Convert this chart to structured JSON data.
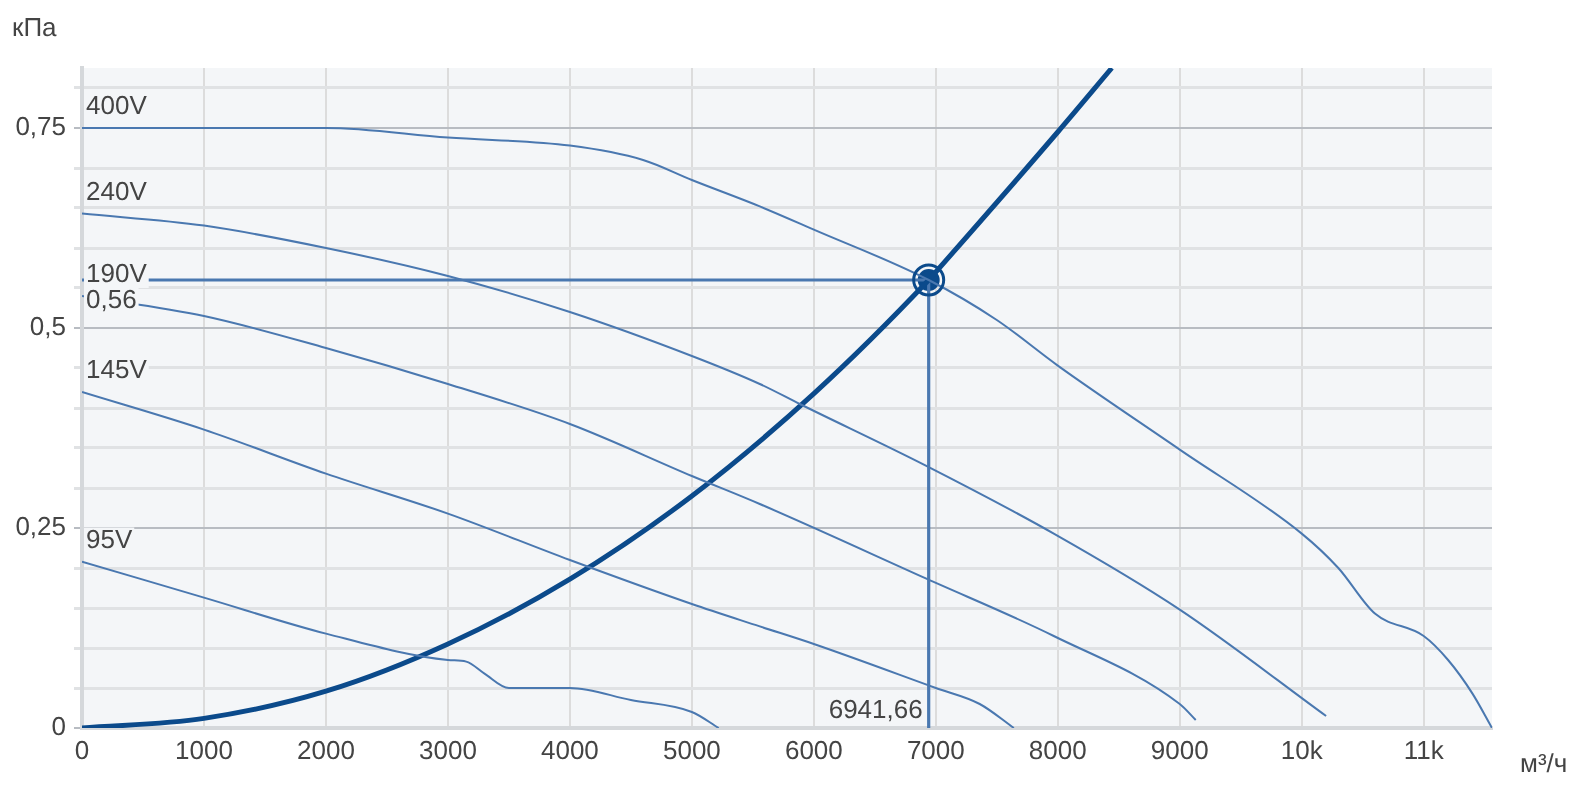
{
  "chart_data": {
    "type": "line",
    "xlabel": "м³/ч",
    "ylabel": "кПа",
    "xlim": [
      0,
      11560
    ],
    "ylim": [
      0,
      0.825
    ],
    "xticks": [
      0,
      1000,
      2000,
      3000,
      4000,
      5000,
      6000,
      7000,
      8000,
      9000,
      {
        "value": 10000,
        "label": "10k"
      },
      {
        "value": 11000,
        "label": "11k"
      }
    ],
    "yticks": [
      {
        "value": 0,
        "label": "0"
      },
      {
        "value": 0.05,
        "label": null
      },
      {
        "value": 0.1,
        "label": null
      },
      {
        "value": 0.15,
        "label": null
      },
      {
        "value": 0.2,
        "label": null
      },
      {
        "value": 0.25,
        "label": "0,25"
      },
      {
        "value": 0.3,
        "label": null
      },
      {
        "value": 0.35,
        "label": null
      },
      {
        "value": 0.4,
        "label": null
      },
      {
        "value": 0.45,
        "label": null
      },
      {
        "value": 0.5,
        "label": "0,5"
      },
      {
        "value": 0.55,
        "label": null
      },
      {
        "value": 0.6,
        "label": null
      },
      {
        "value": 0.65,
        "label": null
      },
      {
        "value": 0.7,
        "label": null
      },
      {
        "value": 0.75,
        "label": "0,75"
      },
      {
        "value": 0.8,
        "label": null
      }
    ],
    "grid": true,
    "legend": false,
    "marker": "none",
    "line_style": "solid",
    "series": [
      {
        "name": "400V",
        "color": "#4a78b0",
        "x": [
          0,
          1000,
          2000,
          3000,
          4000,
          4600,
          5000,
          5557,
          6000,
          6941.66,
          7500,
          8000,
          9000,
          10000,
          10300,
          10600,
          11000,
          11200,
          11400,
          11560
        ],
        "values": [
          0.75,
          0.75,
          0.75,
          0.738,
          0.728,
          0.71,
          0.685,
          0.652,
          0.623,
          0.56,
          0.51,
          0.453,
          0.348,
          0.243,
          0.2,
          0.143,
          0.115,
          0.085,
          0.043,
          0
        ]
      },
      {
        "name": "240V",
        "color": "#4a78b0",
        "x": [
          0,
          1000,
          2000,
          3000,
          4000,
          5000,
          5557,
          5885,
          6918,
          7967,
          9000,
          10200
        ],
        "values": [
          0.643,
          0.628,
          0.6,
          0.565,
          0.52,
          0.465,
          0.43,
          0.405,
          0.328,
          0.243,
          0.148,
          0.015
        ]
      },
      {
        "name": "190V",
        "color": "#4a78b0",
        "x": [
          0,
          1000,
          2000,
          3000,
          4000,
          5000,
          5557,
          6918,
          7967,
          9000,
          9131
        ],
        "values": [
          0.54,
          0.515,
          0.475,
          0.43,
          0.38,
          0.315,
          0.28,
          0.187,
          0.115,
          0.03,
          0.01
        ]
      },
      {
        "name": "145V",
        "color": "#4a78b0",
        "x": [
          0,
          1000,
          2000,
          3000,
          4000,
          5000,
          5557,
          6000,
          7000,
          7360,
          7640
        ],
        "values": [
          0.42,
          0.373,
          0.318,
          0.268,
          0.21,
          0.155,
          0.127,
          0.105,
          0.05,
          0.03,
          0
        ]
      },
      {
        "name": "95V",
        "color": "#4a78b0",
        "x": [
          0,
          1000,
          2000,
          3000,
          3150,
          3300,
          3500,
          4000,
          4500,
          5000,
          5220
        ],
        "values": [
          0.208,
          0.163,
          0.118,
          0.085,
          0.083,
          0.068,
          0.05,
          0.05,
          0.035,
          0.02,
          0
        ]
      },
      {
        "color": "#0b4a8b",
        "x": [
          0,
          1000,
          2000,
          3000,
          4000,
          5000,
          6000,
          6941.66,
          7000,
          8000,
          8443
        ],
        "values": [
          0,
          0.012,
          0.046,
          0.105,
          0.186,
          0.29,
          0.418,
          0.56,
          0.57,
          0.745,
          0.825
        ]
      },
      {
        "color": "#4a78b0",
        "x": [
          0,
          6941.66,
          6941.66
        ],
        "values": [
          0.56,
          0.56,
          0
        ]
      },
      {
        "type": "scatter",
        "marker": "circle",
        "color": "#0b4a8b",
        "x": [
          6941.66
        ],
        "values": [
          0.56
        ]
      }
    ],
    "annotations": [
      {
        "text": "0,56",
        "x": 0,
        "y": 0.56
      },
      {
        "text": "6941,66",
        "x": 6941.66,
        "y": 0
      }
    ]
  }
}
